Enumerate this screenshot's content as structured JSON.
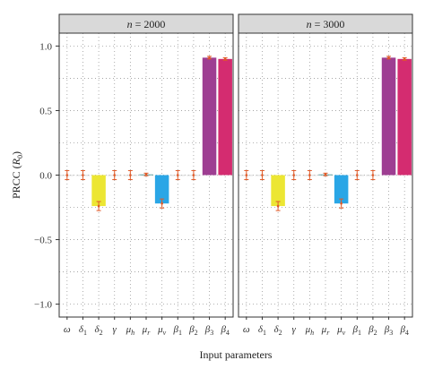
{
  "chart_data": {
    "type": "bar",
    "ylabel_main": "PRCC (",
    "ylabel_sym": "R",
    "ylabel_sub": "0",
    "ylabel_end": ")",
    "xlabel": "Input parameters",
    "ylim": [
      -1.1,
      1.1
    ],
    "yticks": [
      "1.0",
      "0.5",
      "0.0",
      "−0.5",
      "−1.0"
    ],
    "ytick_values": [
      1.0,
      0.5,
      0.0,
      -0.5,
      -1.0
    ],
    "grid": "dotted",
    "categories": [
      {
        "sym": "ω",
        "sub": ""
      },
      {
        "sym": "δ",
        "sub": "1"
      },
      {
        "sym": "δ",
        "sub": "2"
      },
      {
        "sym": "γ",
        "sub": ""
      },
      {
        "sym": "μ",
        "sub": "h"
      },
      {
        "sym": "μ",
        "sub": "r"
      },
      {
        "sym": "μ",
        "sub": "v"
      },
      {
        "sym": "β",
        "sub": "1"
      },
      {
        "sym": "β",
        "sub": "2"
      },
      {
        "sym": "β",
        "sub": "3"
      },
      {
        "sym": "β",
        "sub": "4"
      }
    ],
    "bar_colors": [
      "#cccccc",
      "#cccccc",
      "#ece633",
      "#cccccc",
      "#cccccc",
      "#3a8a8a",
      "#2aa6e6",
      "#cccccc",
      "#cccccc",
      "#9e3e92",
      "#d42c70"
    ],
    "error_color": "#e05a28",
    "panels": [
      {
        "strip_label": "n = 2000",
        "strip_n": "n",
        "strip_rest": " = 2000",
        "values": [
          0.0,
          0.0,
          -0.24,
          0.0,
          0.0,
          0.005,
          -0.22,
          0.0,
          0.0,
          0.91,
          0.9
        ],
        "errors": [
          0.035,
          0.035,
          0.035,
          0.035,
          0.035,
          0.01,
          0.035,
          0.035,
          0.035,
          0.01,
          0.01
        ]
      },
      {
        "strip_label": "n = 3000",
        "strip_n": "n",
        "strip_rest": " = 3000",
        "values": [
          0.0,
          0.0,
          -0.24,
          0.0,
          0.0,
          0.005,
          -0.22,
          0.0,
          0.0,
          0.91,
          0.9
        ],
        "errors": [
          0.035,
          0.035,
          0.035,
          0.035,
          0.035,
          0.01,
          0.035,
          0.035,
          0.035,
          0.01,
          0.01
        ]
      }
    ]
  }
}
